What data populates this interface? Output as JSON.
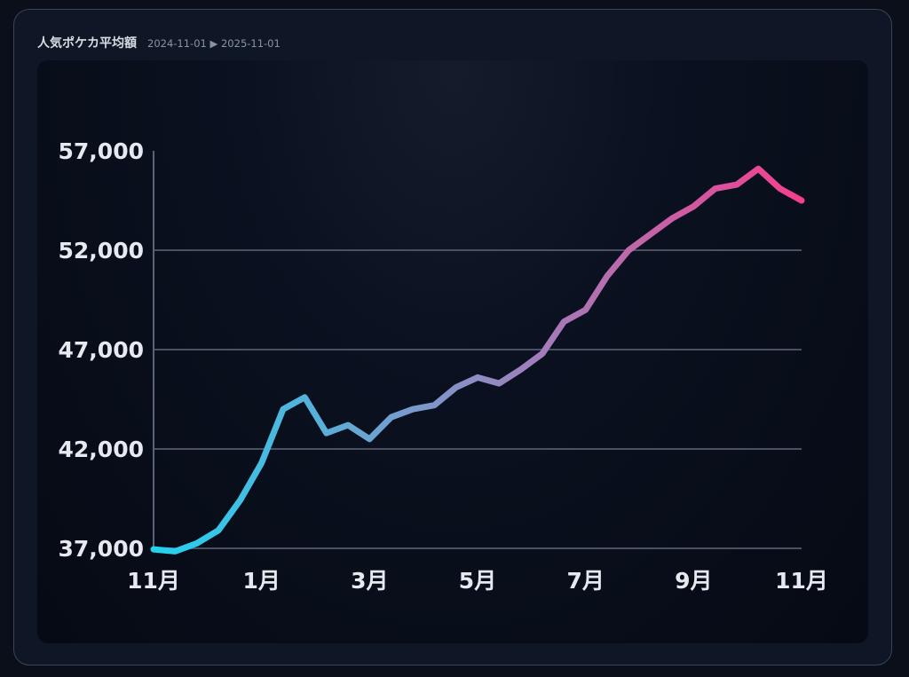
{
  "header": {
    "title": "人気ポケカ平均額",
    "date_range": "2024-11-01 ▶ 2025-11-01"
  },
  "colors": {
    "line_start": "#22d3ee",
    "line_mid": "#8e8cc4",
    "line_end": "#f43f8e",
    "grid": "#4a5163",
    "axis": "#5a6275"
  },
  "chart_data": {
    "type": "line",
    "title": "人気ポケカ平均額",
    "xlabel": "",
    "ylabel": "",
    "ylim": [
      37000,
      57000
    ],
    "yticks": [
      37000,
      42000,
      47000,
      52000,
      57000
    ],
    "ytick_labels": [
      "37,000",
      "42,000",
      "47,000",
      "52,000",
      "57,000"
    ],
    "xlim": [
      0,
      30
    ],
    "xticks": [
      0,
      5,
      10,
      15,
      20,
      25,
      30
    ],
    "xtick_labels": [
      "11月",
      "1月",
      "3月",
      "5月",
      "7月",
      "9月",
      "11月"
    ],
    "grid": true,
    "series": [
      {
        "x": [
          0,
          1,
          2,
          3,
          4,
          5,
          6,
          7,
          8,
          9,
          10,
          11,
          12,
          13,
          14,
          15,
          16,
          17,
          18,
          19,
          20,
          21,
          22,
          23,
          24,
          25,
          26,
          27,
          28,
          29,
          30
        ],
        "values": [
          36950,
          36850,
          37250,
          37900,
          39400,
          41300,
          44000,
          44600,
          42800,
          43200,
          42500,
          43600,
          44000,
          44200,
          45100,
          45600,
          45300,
          46000,
          46800,
          48400,
          49000,
          50700,
          52000,
          52800,
          53600,
          54200,
          55100,
          55300,
          56100,
          55100,
          54500
        ]
      }
    ]
  }
}
